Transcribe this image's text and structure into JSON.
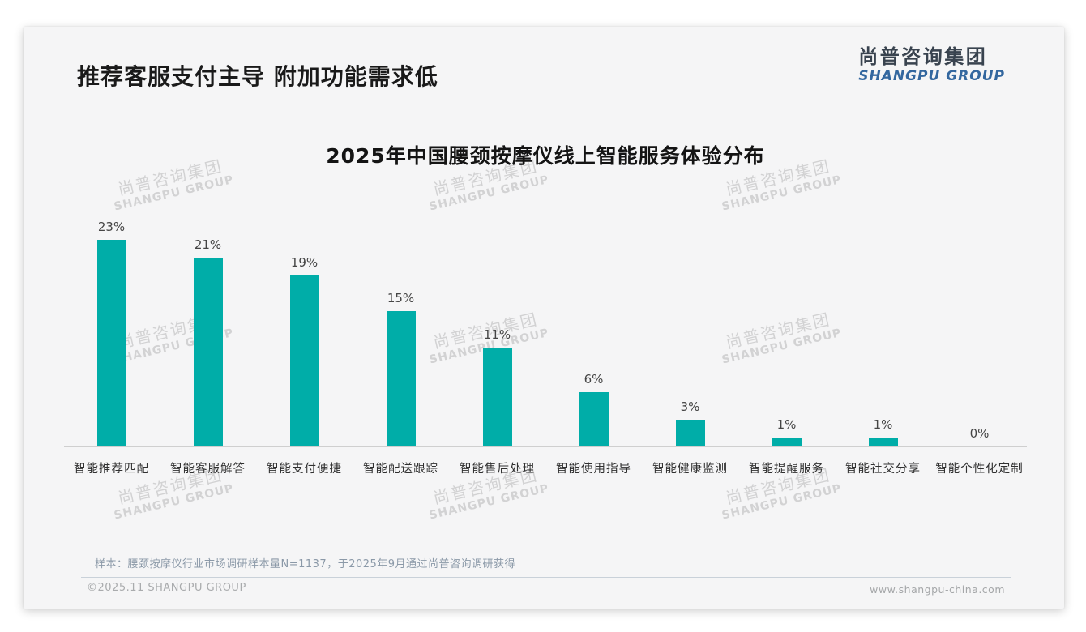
{
  "page": {
    "slide_title": "推荐客服支付主导 附加功能需求低",
    "logo": {
      "cn": "尚普咨询集团",
      "en": "SHANGPU GROUP"
    },
    "watermark": {
      "cn": "尚普咨询集团",
      "en": "SHANGPU GROUP"
    },
    "note": "样本：腰颈按摩仪行业市场调研样本量N=1137，于2025年9月通过尚普咨询调研获得",
    "footer": {
      "left": "©2025.11 SHANGPU GROUP",
      "right": "www.shangpu-china.com"
    }
  },
  "colors": {
    "bar": "#00ada8",
    "slide_background": "#f5f5f6",
    "logo_cn": "#39434f",
    "logo_en": "#33679f",
    "watermark": "#d2d2d3"
  },
  "chart_data": {
    "type": "bar",
    "title": "2025年中国腰颈按摩仪线上智能服务体验分布",
    "categories": [
      "智能推荐匹配",
      "智能客服解答",
      "智能支付便捷",
      "智能配送跟踪",
      "智能售后处理",
      "智能使用指导",
      "智能健康监测",
      "智能提醒服务",
      "智能社交分享",
      "智能个性化定制"
    ],
    "values": [
      23,
      21,
      19,
      15,
      11,
      6,
      3,
      1,
      1,
      0
    ],
    "value_labels": [
      "23%",
      "21%",
      "19%",
      "15%",
      "11%",
      "6%",
      "3%",
      "1%",
      "1%",
      "0%"
    ],
    "unit": "%",
    "xlabel": "",
    "ylabel": "",
    "ylim": [
      0,
      25
    ],
    "grid": false,
    "legend": false,
    "bar_color": "#00ada8"
  }
}
